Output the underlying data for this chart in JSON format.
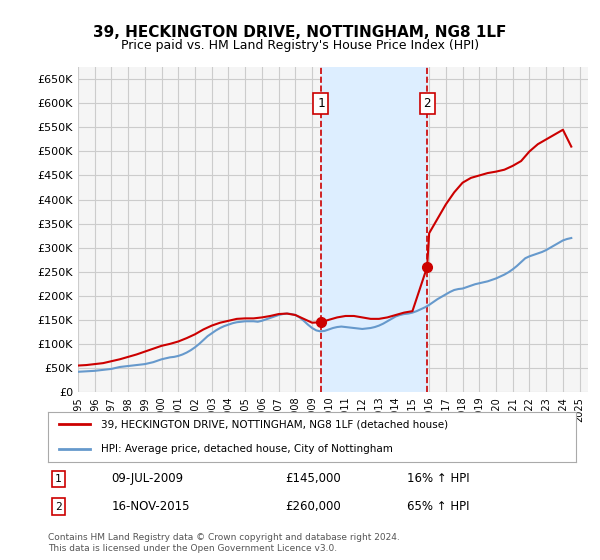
{
  "title": "39, HECKINGTON DRIVE, NOTTINGHAM, NG8 1LF",
  "subtitle": "Price paid vs. HM Land Registry's House Price Index (HPI)",
  "ylabel_ticks": [
    "£0",
    "£50K",
    "£100K",
    "£150K",
    "£200K",
    "£250K",
    "£300K",
    "£350K",
    "£400K",
    "£450K",
    "£500K",
    "£550K",
    "£600K",
    "£650K"
  ],
  "ylim": [
    0,
    675000
  ],
  "xlim_start": 1995.0,
  "xlim_end": 2025.5,
  "background_color": "#ffffff",
  "grid_color": "#cccccc",
  "plot_bg_color": "#f5f5f5",
  "red_color": "#cc0000",
  "blue_color": "#6699cc",
  "shade_color": "#ddeeff",
  "marker1_x": 2009.52,
  "marker1_y": 145000,
  "marker2_x": 2015.88,
  "marker2_y": 260000,
  "marker1_label": "1",
  "marker2_label": "2",
  "marker1_date": "09-JUL-2009",
  "marker1_price": "£145,000",
  "marker1_hpi": "16% ↑ HPI",
  "marker2_date": "16-NOV-2015",
  "marker2_price": "£260,000",
  "marker2_hpi": "65% ↑ HPI",
  "legend_line1": "39, HECKINGTON DRIVE, NOTTINGHAM, NG8 1LF (detached house)",
  "legend_line2": "HPI: Average price, detached house, City of Nottingham",
  "footer": "Contains HM Land Registry data © Crown copyright and database right 2024.\nThis data is licensed under the Open Government Licence v3.0.",
  "hpi_x": [
    1995,
    1995.25,
    1995.5,
    1995.75,
    1996,
    1996.25,
    1996.5,
    1996.75,
    1997,
    1997.25,
    1997.5,
    1997.75,
    1998,
    1998.25,
    1998.5,
    1998.75,
    1999,
    1999.25,
    1999.5,
    1999.75,
    2000,
    2000.25,
    2000.5,
    2000.75,
    2001,
    2001.25,
    2001.5,
    2001.75,
    2002,
    2002.25,
    2002.5,
    2002.75,
    2003,
    2003.25,
    2003.5,
    2003.75,
    2004,
    2004.25,
    2004.5,
    2004.75,
    2005,
    2005.25,
    2005.5,
    2005.75,
    2006,
    2006.25,
    2006.5,
    2006.75,
    2007,
    2007.25,
    2007.5,
    2007.75,
    2008,
    2008.25,
    2008.5,
    2008.75,
    2009,
    2009.25,
    2009.5,
    2009.75,
    2010,
    2010.25,
    2010.5,
    2010.75,
    2011,
    2011.25,
    2011.5,
    2011.75,
    2012,
    2012.25,
    2012.5,
    2012.75,
    2013,
    2013.25,
    2013.5,
    2013.75,
    2014,
    2014.25,
    2014.5,
    2014.75,
    2015,
    2015.25,
    2015.5,
    2015.75,
    2016,
    2016.25,
    2016.5,
    2016.75,
    2017,
    2017.25,
    2017.5,
    2017.75,
    2018,
    2018.25,
    2018.5,
    2018.75,
    2019,
    2019.25,
    2019.5,
    2019.75,
    2020,
    2020.25,
    2020.5,
    2020.75,
    2021,
    2021.25,
    2021.5,
    2021.75,
    2022,
    2022.25,
    2022.5,
    2022.75,
    2023,
    2023.25,
    2023.5,
    2023.75,
    2024,
    2024.25,
    2024.5
  ],
  "hpi_y": [
    42000,
    42500,
    43000,
    43500,
    44000,
    45000,
    46000,
    47000,
    48000,
    50000,
    52000,
    53000,
    54000,
    55000,
    56000,
    57000,
    58000,
    60000,
    62000,
    65000,
    68000,
    70000,
    72000,
    73000,
    75000,
    78000,
    82000,
    87000,
    93000,
    100000,
    108000,
    116000,
    122000,
    128000,
    133000,
    137000,
    140000,
    143000,
    145000,
    146000,
    147000,
    147000,
    147000,
    146000,
    148000,
    151000,
    154000,
    157000,
    160000,
    162000,
    163000,
    162000,
    160000,
    155000,
    148000,
    140000,
    133000,
    128000,
    126000,
    127000,
    130000,
    133000,
    135000,
    136000,
    135000,
    134000,
    133000,
    132000,
    131000,
    132000,
    133000,
    135000,
    138000,
    142000,
    147000,
    152000,
    157000,
    160000,
    162000,
    163000,
    165000,
    168000,
    172000,
    176000,
    181000,
    187000,
    193000,
    198000,
    203000,
    208000,
    212000,
    214000,
    215000,
    218000,
    221000,
    224000,
    226000,
    228000,
    230000,
    233000,
    236000,
    240000,
    244000,
    249000,
    255000,
    262000,
    270000,
    278000,
    282000,
    285000,
    288000,
    291000,
    295000,
    300000,
    305000,
    310000,
    315000,
    318000,
    320000
  ],
  "red_x": [
    1995.0,
    1995.5,
    1996.0,
    1996.5,
    1997.0,
    1997.5,
    1998.0,
    1998.5,
    1999.0,
    1999.5,
    2000.0,
    2000.5,
    2001.0,
    2001.5,
    2002.0,
    2002.5,
    2003.0,
    2003.5,
    2004.0,
    2004.5,
    2005.0,
    2005.5,
    2006.0,
    2006.5,
    2007.0,
    2007.5,
    2008.0,
    2008.5,
    2009.0,
    2009.52,
    2010.0,
    2010.5,
    2011.0,
    2011.5,
    2012.0,
    2012.5,
    2013.0,
    2013.5,
    2014.0,
    2014.5,
    2015.0,
    2015.88,
    2016.0,
    2016.5,
    2017.0,
    2017.5,
    2018.0,
    2018.5,
    2019.0,
    2019.5,
    2020.0,
    2020.5,
    2021.0,
    2021.5,
    2022.0,
    2022.5,
    2023.0,
    2023.5,
    2024.0,
    2024.5
  ],
  "red_y": [
    55000,
    56000,
    58000,
    60000,
    64000,
    68000,
    73000,
    78000,
    84000,
    90000,
    96000,
    100000,
    105000,
    112000,
    120000,
    130000,
    138000,
    144000,
    148000,
    152000,
    153000,
    153000,
    155000,
    158000,
    162000,
    163000,
    160000,
    152000,
    144000,
    145000,
    150000,
    155000,
    158000,
    158000,
    155000,
    152000,
    152000,
    155000,
    160000,
    165000,
    168000,
    260000,
    330000,
    360000,
    390000,
    415000,
    435000,
    445000,
    450000,
    455000,
    458000,
    462000,
    470000,
    480000,
    500000,
    515000,
    525000,
    535000,
    545000,
    510000
  ]
}
